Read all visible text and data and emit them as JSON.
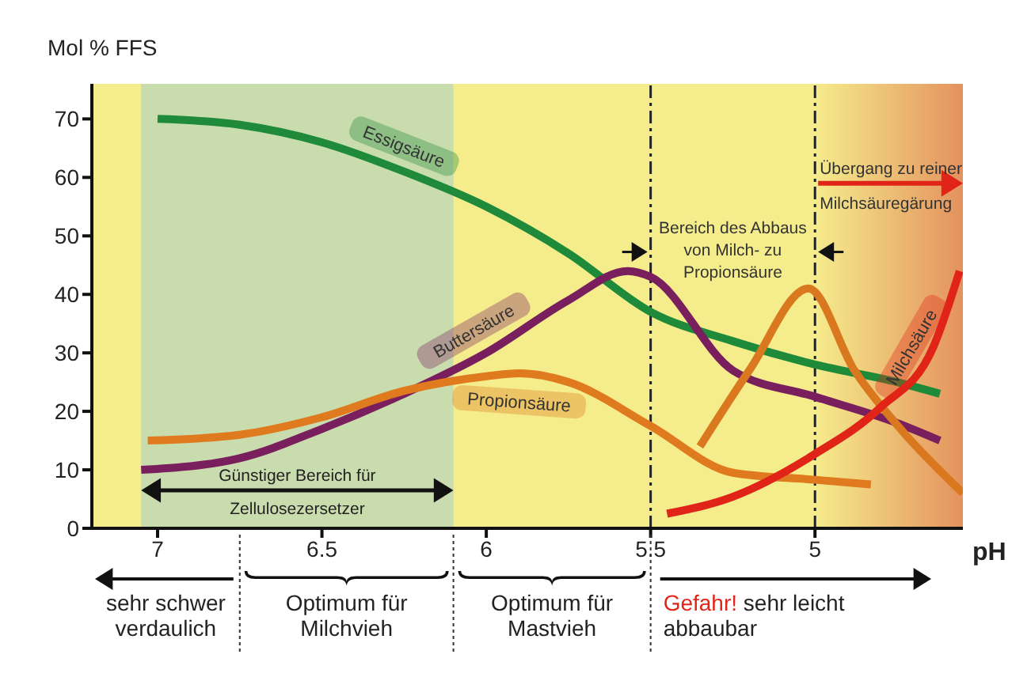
{
  "chart_data": {
    "type": "line",
    "ylabel": "Mol % FFS",
    "xlabel": "pH",
    "xlim": [
      7.2,
      4.55
    ],
    "xticks": [
      7,
      6.5,
      6,
      5.5,
      5
    ],
    "ylim": [
      0,
      76
    ],
    "yticks": [
      0,
      10,
      20,
      30,
      40,
      50,
      60,
      70
    ],
    "marker": "none",
    "line_style": "solid",
    "series": [
      {
        "name": "Essigsäure",
        "color": "#1e8a3a",
        "x": [
          7,
          6.75,
          6.5,
          6.25,
          6,
          5.75,
          5.5,
          5.25,
          5,
          4.75,
          4.62
        ],
        "values": [
          70,
          69,
          66,
          61,
          55,
          47,
          37,
          32,
          28,
          25,
          23
        ]
      },
      {
        "name": "Buttersäure",
        "color": "#7a1f5e",
        "x": [
          7.05,
          6.75,
          6.5,
          6.25,
          6,
          5.75,
          5.57,
          5.5,
          5.25,
          5,
          4.75,
          4.62
        ],
        "values": [
          10,
          12,
          17,
          23,
          30,
          39,
          44,
          43,
          27,
          22.5,
          18,
          15
        ]
      },
      {
        "name": "Propionsäure",
        "color": "#e07a1e",
        "x": [
          7.03,
          6.75,
          6.5,
          6.25,
          6,
          5.9,
          5.75,
          5.5,
          5.25,
          5,
          4.83
        ],
        "values": [
          15,
          16,
          19,
          23.5,
          26,
          26.5,
          25,
          17.5,
          9.5,
          8.3,
          7.5
        ]
      },
      {
        "color": "#d9781e",
        "x": [
          5.35,
          5.2,
          5.02,
          4.88,
          4.74,
          4.55
        ],
        "values": [
          14,
          27,
          41,
          27,
          17,
          6
        ]
      },
      {
        "name": "Milchsäure",
        "color": "#e02518",
        "x": [
          5.45,
          5.25,
          5,
          4.8,
          4.64,
          4.56
        ],
        "values": [
          2.5,
          5.4,
          12.7,
          20.7,
          31,
          44
        ]
      }
    ],
    "bands": [
      {
        "axis": "x",
        "from": 7.05,
        "to": 6.1,
        "label": "Günstiger Bereich für Zellulosezersetzer",
        "color": "#c9dcae"
      },
      {
        "axis": "x",
        "from": 5,
        "to": 4.55,
        "label": "Übergang zu reiner Milchsäuregärung",
        "color": "#e4925e"
      }
    ],
    "ref_lines": [
      {
        "axis": "x",
        "value": 5.5,
        "line_style": "dashed"
      },
      {
        "axis": "x",
        "value": 5,
        "line_style": "dashed"
      }
    ],
    "annotations": [
      "Bereich des Abbaus von Milch- zu Propionsäure",
      "sehr schwer verdaulich",
      "Optimum für Milchvieh",
      "Optimum für Mastvieh",
      "Gefahr! sehr leicht abbaubar"
    ]
  }
}
